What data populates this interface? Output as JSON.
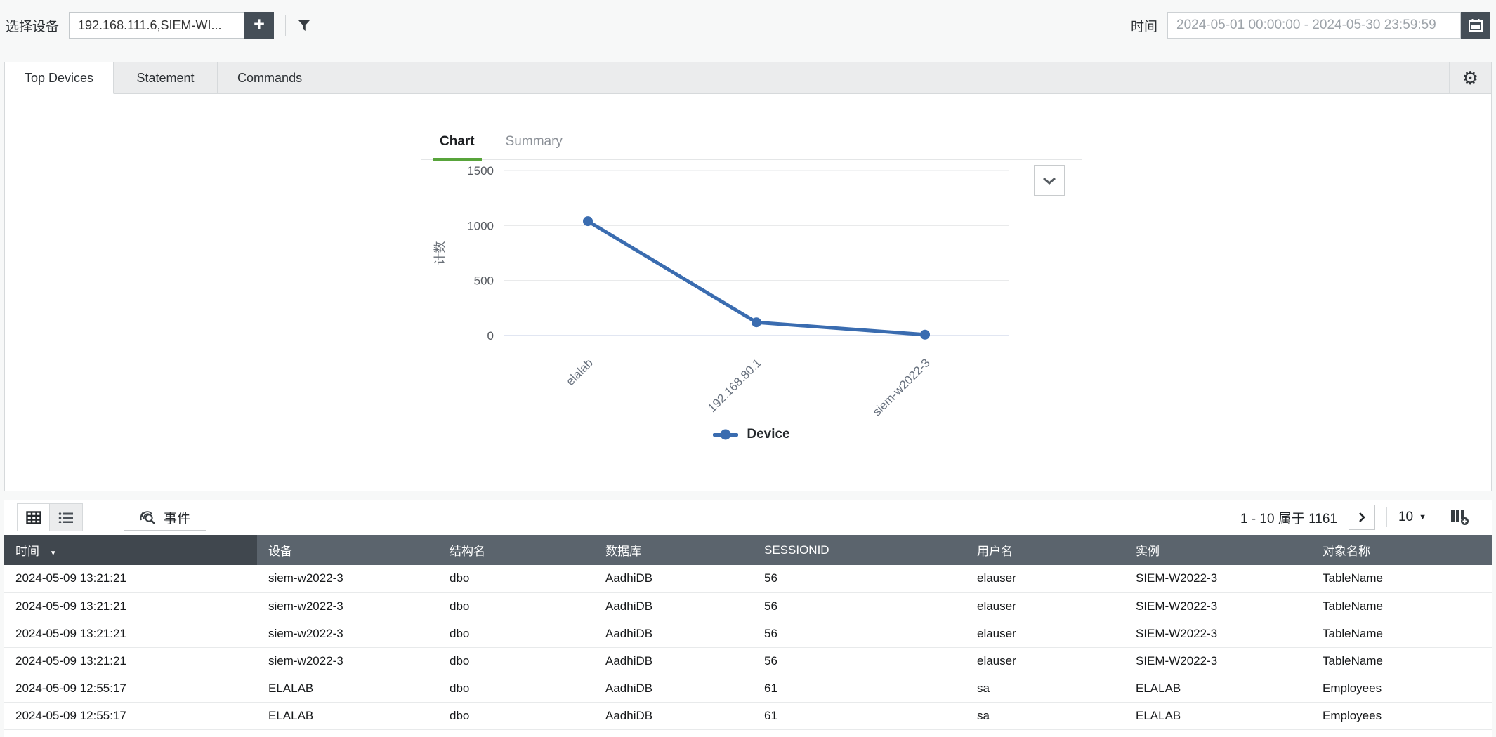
{
  "topbar": {
    "device_label": "选择设备",
    "device_value": "192.168.111.6,SIEM-WI...",
    "add_button": "+",
    "time_label": "时间",
    "time_value": "2024-05-01 00:00:00 - 2024-05-30 23:59:59"
  },
  "tabs": [
    {
      "label": "Top Devices",
      "active": true
    },
    {
      "label": "Statement",
      "active": false
    },
    {
      "label": "Commands",
      "active": false
    }
  ],
  "chart_tabs": [
    {
      "label": "Chart",
      "active": true
    },
    {
      "label": "Summary",
      "active": false
    }
  ],
  "chart_data": {
    "type": "line",
    "categories": [
      "elalab",
      "192.168.80.1",
      "siem-w2022-3"
    ],
    "series": [
      {
        "name": "Device",
        "values": [
          1040,
          120,
          8
        ],
        "color": "#3a6cb0"
      }
    ],
    "title": "",
    "xlabel": "",
    "ylabel": "计数",
    "yticks": [
      0,
      500,
      1000,
      1500
    ],
    "ylim": [
      0,
      1500
    ],
    "grid": true,
    "legend_position": "bottom"
  },
  "colors": {
    "accent_green": "#58a43b",
    "chart_blue": "#3a6cb0",
    "header_bg": "#5b646d",
    "header_sorted_bg": "#40474e"
  },
  "toolbar": {
    "event_button": "事件",
    "pagination": "1 - 10 属于 1161",
    "page_size": "10"
  },
  "table": {
    "columns": [
      "时间",
      "设备",
      "结构名",
      "数据库",
      "SESSIONID",
      "用户名",
      "实例",
      "对象名称"
    ],
    "sorted_column": "时间",
    "rows": [
      [
        "2024-05-09 13:21:21",
        "siem-w2022-3",
        "dbo",
        "AadhiDB",
        "56",
        "elauser",
        "SIEM-W2022-3",
        "TableName"
      ],
      [
        "2024-05-09 13:21:21",
        "siem-w2022-3",
        "dbo",
        "AadhiDB",
        "56",
        "elauser",
        "SIEM-W2022-3",
        "TableName"
      ],
      [
        "2024-05-09 13:21:21",
        "siem-w2022-3",
        "dbo",
        "AadhiDB",
        "56",
        "elauser",
        "SIEM-W2022-3",
        "TableName"
      ],
      [
        "2024-05-09 13:21:21",
        "siem-w2022-3",
        "dbo",
        "AadhiDB",
        "56",
        "elauser",
        "SIEM-W2022-3",
        "TableName"
      ],
      [
        "2024-05-09 12:55:17",
        "ELALAB",
        "dbo",
        "AadhiDB",
        "61",
        "sa",
        "ELALAB",
        "Employees"
      ],
      [
        "2024-05-09 12:55:17",
        "ELALAB",
        "dbo",
        "AadhiDB",
        "61",
        "sa",
        "ELALAB",
        "Employees"
      ]
    ]
  }
}
